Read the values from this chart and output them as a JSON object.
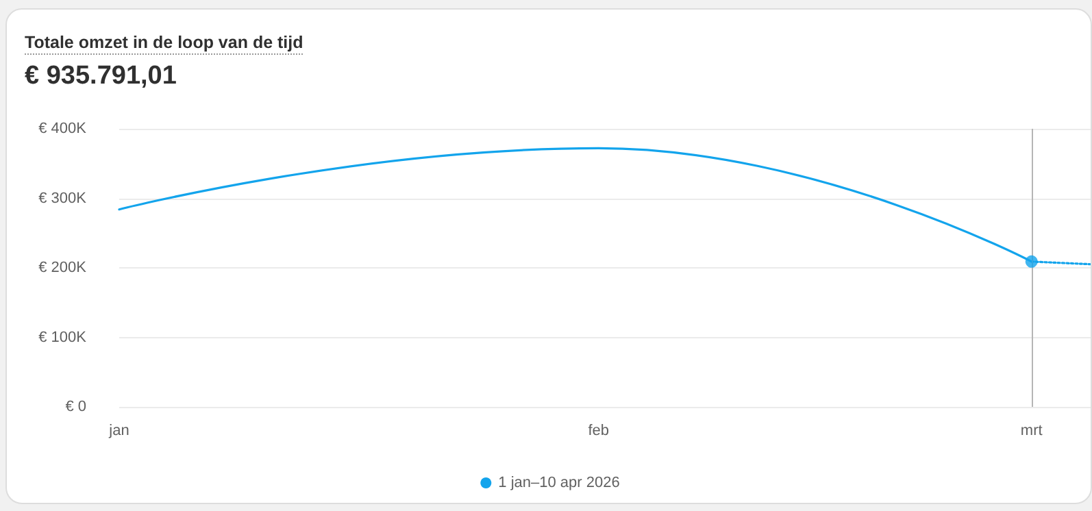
{
  "chart_data": {
    "type": "line",
    "title": "Totale omzet in de loop van de tijd",
    "subtitle": "€ 935.791,01",
    "xlim": [
      "2026-01-01",
      "2026-03-05"
    ],
    "xticks": [
      {
        "value": "2026-01-01",
        "label": "jan"
      },
      {
        "value": "2026-02-01",
        "label": "feb"
      },
      {
        "value": "2026-03-01",
        "label": "mrt"
      }
    ],
    "ylim": [
      0,
      400000
    ],
    "yticks": [
      {
        "value": 0,
        "label": "€ 0"
      },
      {
        "value": 100000,
        "label": "€ 100K"
      },
      {
        "value": 200000,
        "label": "€ 200K"
      },
      {
        "value": 300000,
        "label": "€ 300K"
      },
      {
        "value": 400000,
        "label": "€ 400K"
      }
    ],
    "series": [
      {
        "name": "1 jan–10 apr 2026",
        "color": "#13a4ec",
        "x": [
          "2026-01-01",
          "2026-02-01",
          "2026-03-01"
        ],
        "values": [
          284000,
          372000,
          209000
        ]
      },
      {
        "color": "#13a4ec",
        "line_style": "dotted",
        "x": [
          "2026-03-01",
          "2026-03-05"
        ],
        "values": [
          209000,
          205000
        ]
      },
      {
        "type": "scatter",
        "color": "#13a4ec",
        "marker": "circle",
        "x": [
          "2026-03-01"
        ],
        "values": [
          209000
        ]
      }
    ],
    "ref_lines": [
      {
        "axis": "x",
        "value": "2026-03-01",
        "color": "#b5b5b5"
      }
    ],
    "grid": "y",
    "legend": "bottom",
    "marker": "none",
    "line_style": "solid"
  }
}
